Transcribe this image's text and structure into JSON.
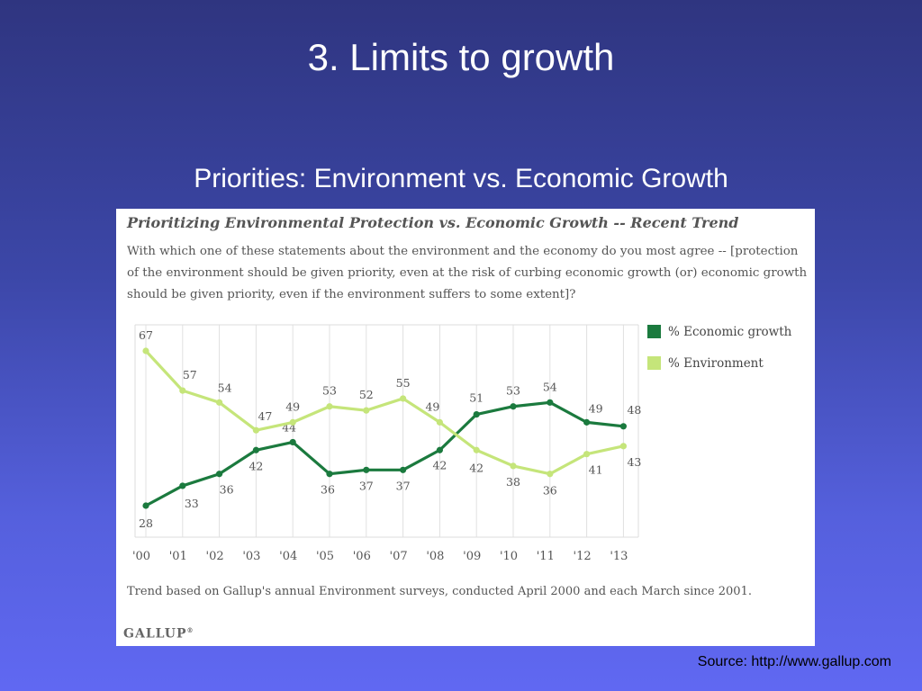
{
  "slide": {
    "title": "3.  Limits to growth",
    "subtitle": "Priorities: Environment vs. Economic Growth",
    "source": "Source: http://www.gallup.com"
  },
  "panel": {
    "title": "Prioritizing Environmental Protection vs. Economic Growth -- Recent Trend",
    "question": "With which one of these statements about the environment and the economy do you most agree -- [protection of the environment should be given priority, even at the risk of curbing economic growth (or) economic growth should be given priority, even if the environment suffers to some extent]?",
    "footnote": "Trend based on Gallup's annual Environment surveys, conducted April 2000 and each March since 2001.",
    "brand": "GALLUP",
    "brand_mark": "®"
  },
  "chart_data": {
    "type": "line",
    "x": [
      "'00",
      "'01",
      "'02",
      "'03",
      "'04",
      "'05",
      "'06",
      "'07",
      "'08",
      "'09",
      "'10",
      "'11",
      "'12",
      "'13"
    ],
    "series": [
      {
        "name": "% Economic growth",
        "color": "#1b7a3e",
        "values": [
          28,
          33,
          36,
          42,
          44,
          36,
          37,
          37,
          42,
          51,
          53,
          54,
          49,
          48
        ]
      },
      {
        "name": "% Environment",
        "color": "#c5e57a",
        "values": [
          67,
          57,
          54,
          47,
          49,
          53,
          52,
          55,
          49,
          42,
          38,
          36,
          41,
          43
        ]
      }
    ],
    "grid": true,
    "legend_position": "right"
  }
}
